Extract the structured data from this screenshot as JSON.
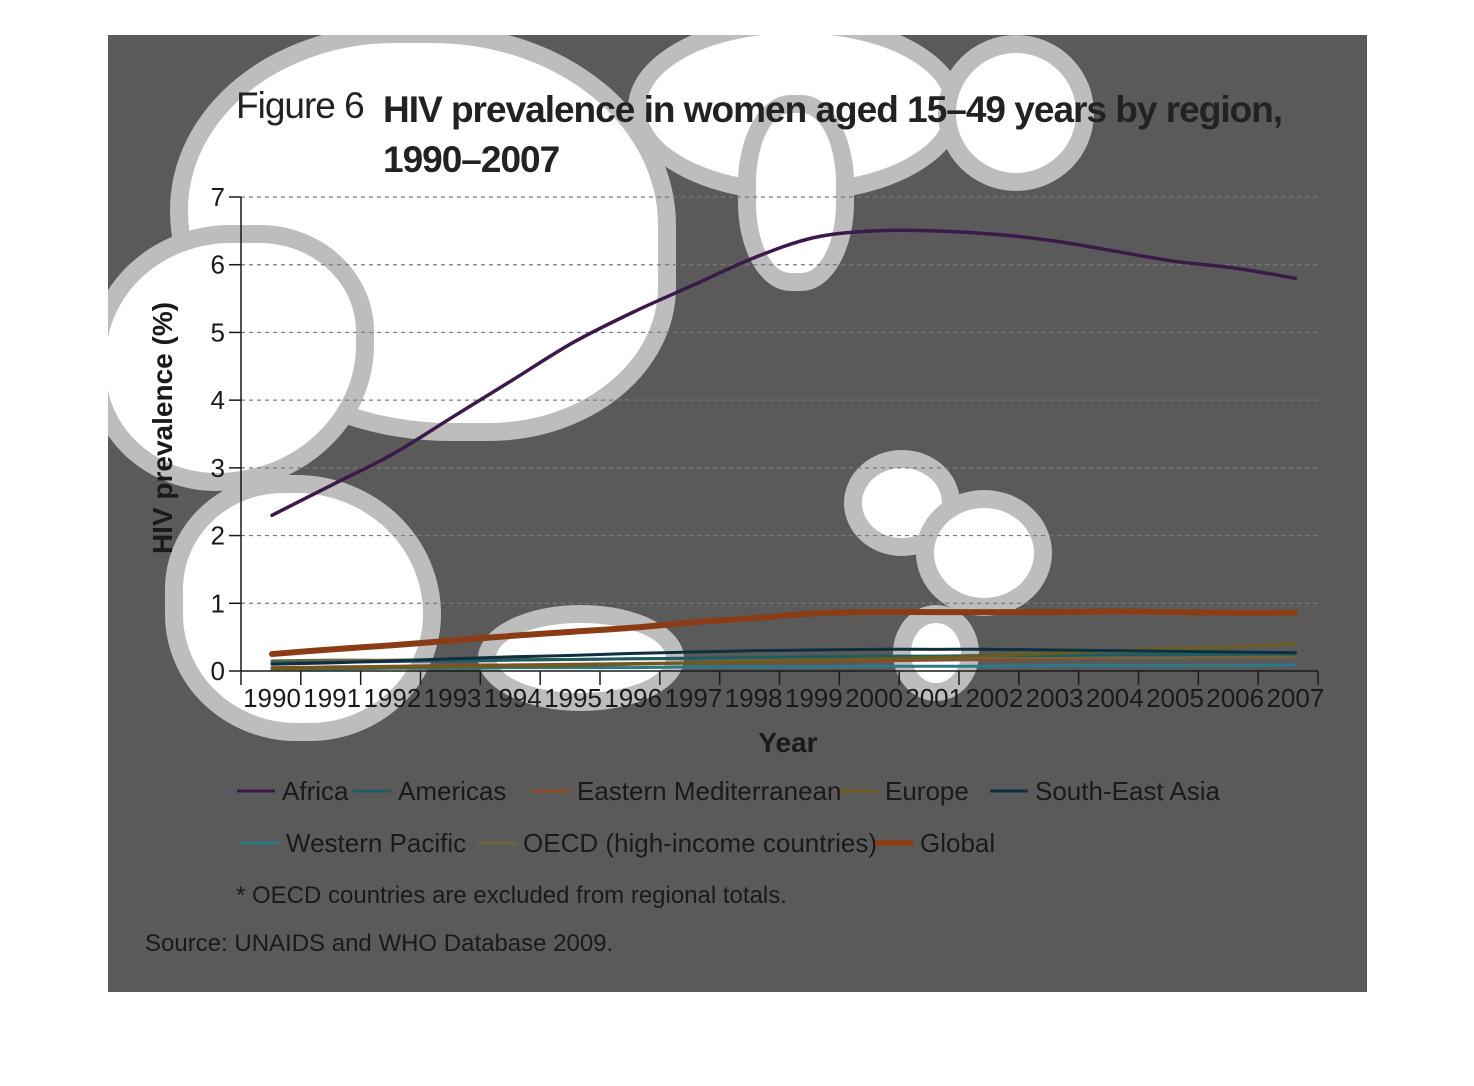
{
  "figure": {
    "prefix": "Figure 6",
    "title": "HIV prevalence in women aged 15–49 years by region, 1990–2007"
  },
  "footnote": "* OECD countries are excluded from regional totals.",
  "source": "Source: UNAIDS and WHO Database 2009.",
  "chart_data": {
    "type": "line",
    "title": "HIV prevalence in women aged 15–49 years by region, 1990–2007",
    "xlabel": "Year",
    "ylabel": "HIV prevalence (%)",
    "ylim": [
      0,
      7
    ],
    "yticks": [
      0,
      1,
      2,
      3,
      4,
      5,
      6,
      7
    ],
    "grid": "horizontal dashed",
    "legend_position": "bottom",
    "x": [
      "1990",
      "1991",
      "1992",
      "1993",
      "1994",
      "1995",
      "1996",
      "1997",
      "1998",
      "1999",
      "2000",
      "2001",
      "2002",
      "2003",
      "2004",
      "2005",
      "2006",
      "2007"
    ],
    "series": [
      {
        "name": "Africa",
        "color": "#3b1a4a",
        "values": [
          2.3,
          2.75,
          3.2,
          3.75,
          4.3,
          4.85,
          5.3,
          5.7,
          6.1,
          6.4,
          6.5,
          6.5,
          6.45,
          6.35,
          6.2,
          6.05,
          5.95,
          5.8
        ]
      },
      {
        "name": "Americas",
        "color": "#1e5c62",
        "values": [
          0.12,
          0.13,
          0.14,
          0.15,
          0.16,
          0.17,
          0.18,
          0.19,
          0.2,
          0.21,
          0.22,
          0.22,
          0.23,
          0.23,
          0.24,
          0.24,
          0.25,
          0.25
        ]
      },
      {
        "name": "Eastern Mediterranean",
        "color": "#8b4a2a",
        "values": [
          0.05,
          0.06,
          0.07,
          0.08,
          0.09,
          0.1,
          0.11,
          0.12,
          0.13,
          0.14,
          0.15,
          0.16,
          0.17,
          0.18,
          0.19,
          0.2,
          0.2,
          0.21
        ]
      },
      {
        "name": "Europe",
        "color": "#6b5d1f",
        "values": [
          0.03,
          0.04,
          0.05,
          0.06,
          0.07,
          0.08,
          0.1,
          0.12,
          0.14,
          0.16,
          0.18,
          0.2,
          0.23,
          0.26,
          0.3,
          0.33,
          0.36,
          0.4
        ]
      },
      {
        "name": "South-East Asia",
        "color": "#0e2f3f",
        "values": [
          0.1,
          0.12,
          0.15,
          0.18,
          0.21,
          0.23,
          0.26,
          0.28,
          0.3,
          0.31,
          0.32,
          0.32,
          0.32,
          0.31,
          0.3,
          0.29,
          0.28,
          0.27
        ]
      },
      {
        "name": "Western Pacific",
        "color": "#2c7a88",
        "values": [
          0.03,
          0.03,
          0.04,
          0.04,
          0.05,
          0.05,
          0.05,
          0.06,
          0.06,
          0.06,
          0.07,
          0.07,
          0.07,
          0.08,
          0.08,
          0.08,
          0.08,
          0.09
        ]
      },
      {
        "name": "OECD (high-income countries)",
        "color": "#70653e",
        "values": [
          0.15,
          0.16,
          0.16,
          0.17,
          0.17,
          0.17,
          0.18,
          0.18,
          0.18,
          0.19,
          0.19,
          0.19,
          0.2,
          0.2,
          0.2,
          0.2,
          0.2,
          0.21
        ]
      },
      {
        "name": "Global",
        "color": "#8a3c16",
        "values": [
          0.25,
          0.32,
          0.38,
          0.45,
          0.52,
          0.58,
          0.64,
          0.72,
          0.78,
          0.85,
          0.87,
          0.87,
          0.87,
          0.87,
          0.88,
          0.87,
          0.86,
          0.86
        ]
      }
    ]
  }
}
